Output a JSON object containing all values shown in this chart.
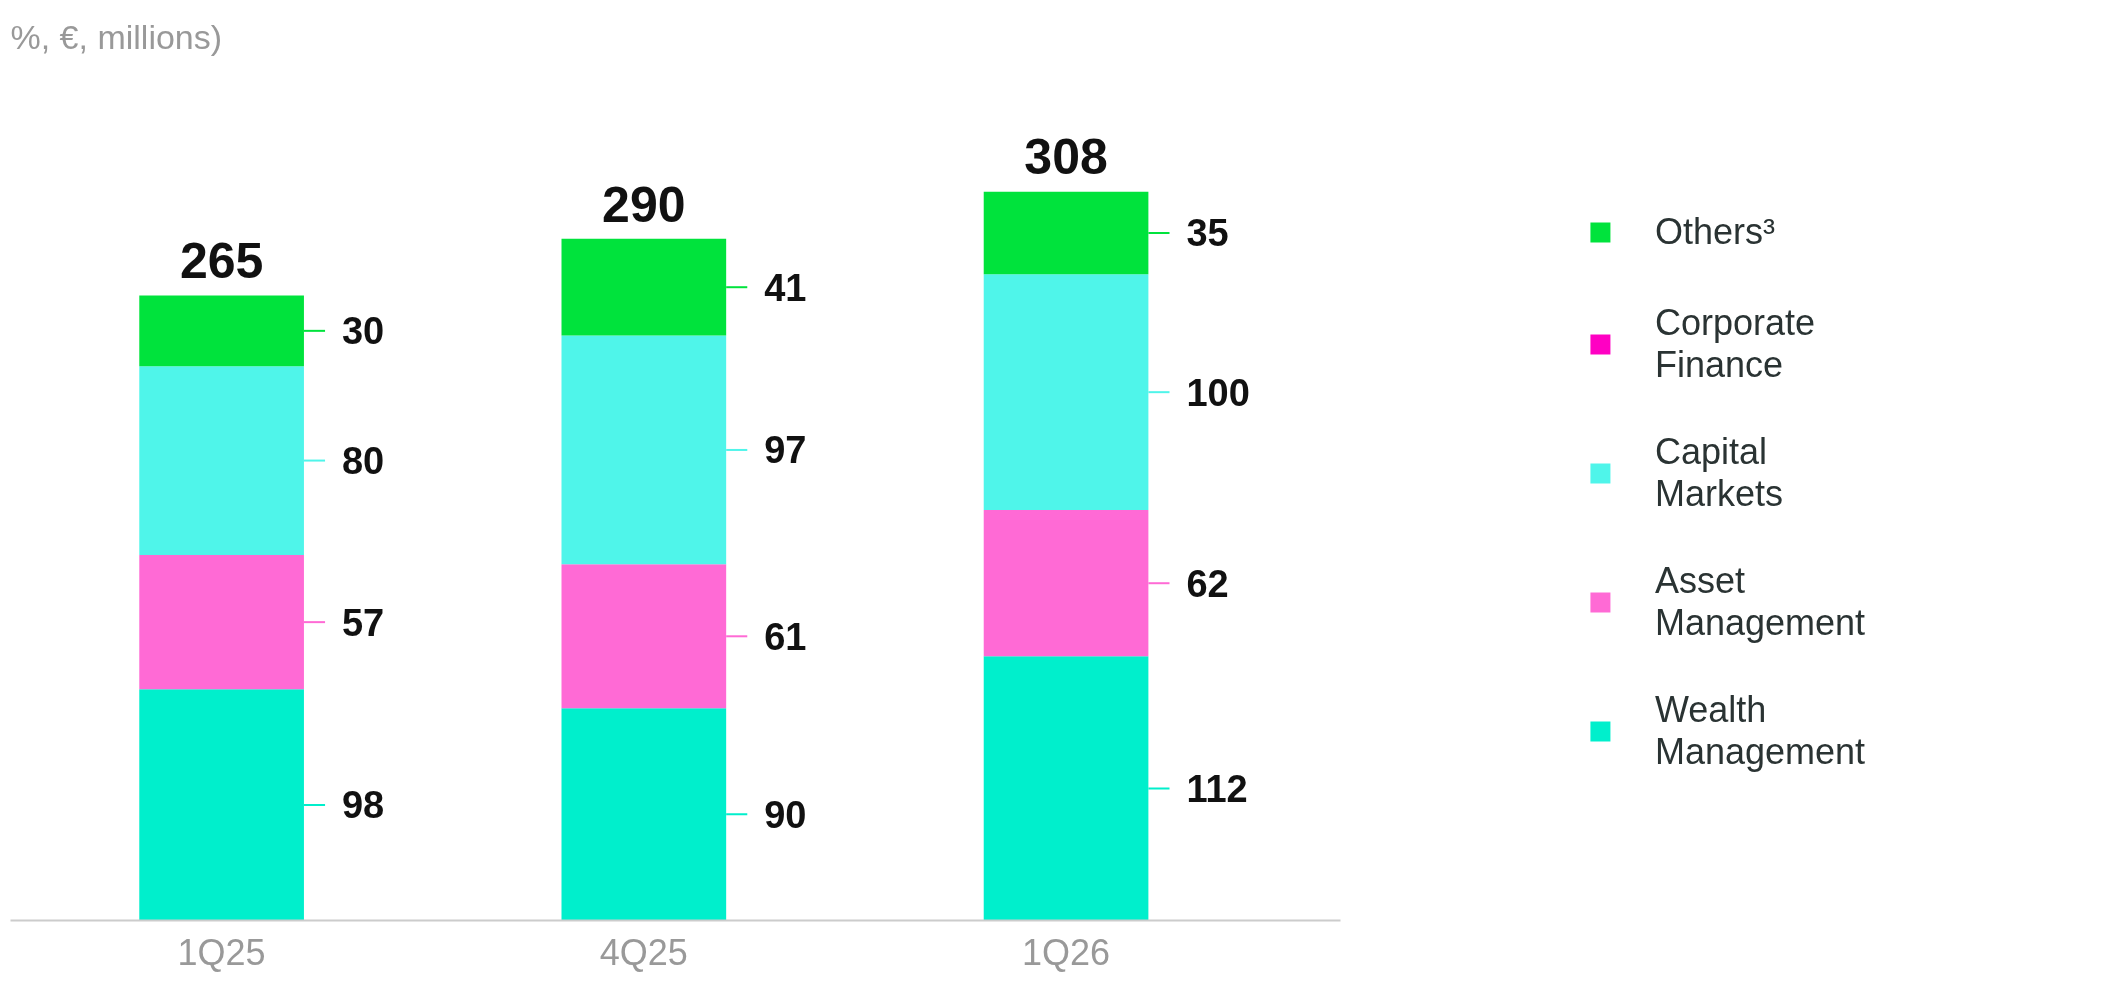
{
  "chart_data": {
    "type": "bar",
    "stacked": true,
    "annotations": [
      "%, €, millions)"
    ],
    "categories": [
      "1Q25",
      "4Q25",
      "1Q26"
    ],
    "series": [
      {
        "name": "Wealth Management",
        "color": "#00efcc",
        "values": [
          98,
          90,
          112
        ]
      },
      {
        "name": "Asset Management",
        "color": "#ff6ad5",
        "values": [
          57,
          61,
          62
        ]
      },
      {
        "name": "Capital Markets",
        "color": "#4ff5ea",
        "values": [
          80,
          97,
          100
        ]
      },
      {
        "name": "Corporate Finance",
        "color": "#ff00c3",
        "values": [
          null,
          null,
          null
        ]
      },
      {
        "name": "Others³",
        "color": "#00e33c",
        "values": [
          30,
          41,
          35
        ]
      }
    ],
    "data_labels": true,
    "totals": [
      "265",
      "290",
      "308"
    ],
    "legend": "right",
    "grid": false
  }
}
